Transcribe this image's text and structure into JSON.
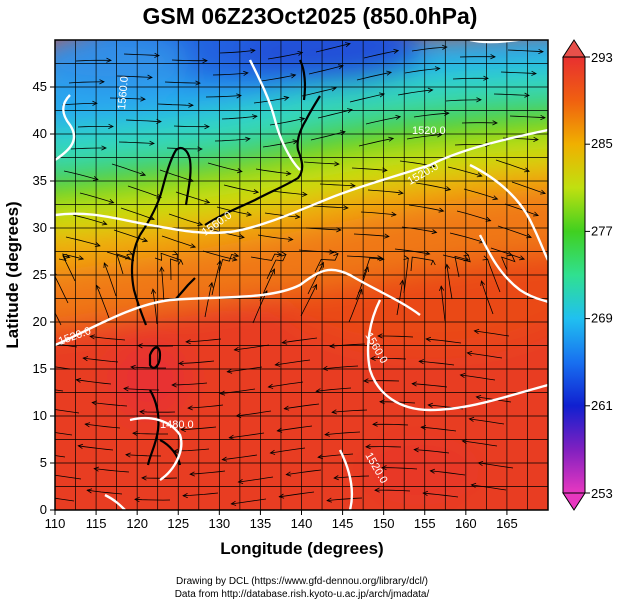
{
  "title": "GSM 06Z23Oct2025 (850.0hPa)",
  "xaxis": {
    "label": "Longitude (degrees)",
    "ticks": [
      110,
      115,
      120,
      125,
      130,
      135,
      140,
      145,
      150,
      155,
      160,
      165
    ],
    "range": [
      110,
      170
    ]
  },
  "yaxis": {
    "label": "Latitude  (degrees)",
    "ticks": [
      0,
      5,
      10,
      15,
      20,
      25,
      30,
      35,
      40,
      45
    ],
    "range": [
      0,
      50
    ]
  },
  "colorbar": {
    "ticks": [
      253,
      261,
      269,
      277,
      285,
      293
    ],
    "range": [
      253,
      293
    ],
    "stops": [
      {
        "v": 253,
        "c": "#e838c0"
      },
      {
        "v": 257,
        "c": "#8020c0"
      },
      {
        "v": 261,
        "c": "#1020d0"
      },
      {
        "v": 265,
        "c": "#1870f0"
      },
      {
        "v": 269,
        "c": "#20c0f0"
      },
      {
        "v": 273,
        "c": "#30e090"
      },
      {
        "v": 277,
        "c": "#40d020"
      },
      {
        "v": 281,
        "c": "#c0e010"
      },
      {
        "v": 285,
        "c": "#f0b000"
      },
      {
        "v": 289,
        "c": "#f06010"
      },
      {
        "v": 293,
        "c": "#e83030"
      }
    ]
  },
  "contour_labels": [
    "1520.0",
    "1520.0",
    "1560.0",
    "1520.0",
    "1560.0",
    "1480.0",
    "1520.0",
    "1560.0"
  ],
  "credits": {
    "line1": "Drawing by DCL (https://www.gfd-dennou.org/library/dcl/)",
    "line2": "Data from http://database.rish.kyoto-u.ac.jp/arch/jmadata/"
  },
  "chart_data": {
    "type": "heatmap",
    "title": "GSM 06Z23Oct2025 (850.0hPa)",
    "xlabel": "Longitude (degrees)",
    "ylabel": "Latitude  (degrees)",
    "xlim": [
      110,
      170
    ],
    "ylim": [
      0,
      50
    ],
    "color_variable_range": [
      253,
      293
    ],
    "overlays": [
      "temperature shading",
      "geopotential height contours (white)",
      "streamlines (black)",
      "coastlines",
      "lat/lon grid"
    ],
    "grid": true
  }
}
